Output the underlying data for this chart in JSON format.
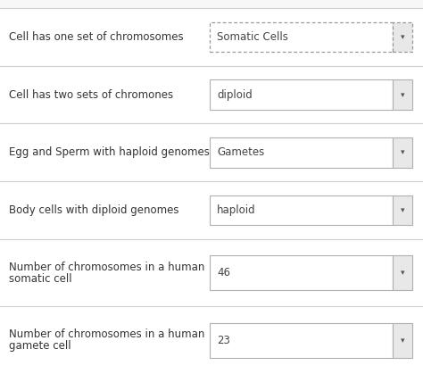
{
  "rows": [
    {
      "question": "Cell has one set of chromosomes",
      "answer": "Somatic Cells",
      "dotted_border": true,
      "multiline": false
    },
    {
      "question": "Cell has two sets of chromones",
      "answer": "diploid",
      "dotted_border": false,
      "multiline": false
    },
    {
      "question": "Egg and Sperm with haploid genomes",
      "answer": "Gametes",
      "dotted_border": false,
      "multiline": false
    },
    {
      "question": "Body cells with diploid genomes",
      "answer": "haploid",
      "dotted_border": false,
      "multiline": false
    },
    {
      "question": "Number of chromosomes in a human\nsomatic cell",
      "answer": "46",
      "dotted_border": false,
      "multiline": true
    },
    {
      "question": "Number of chromosomes in a human\ngamete cell",
      "answer": "23",
      "dotted_border": false,
      "multiline": true
    }
  ],
  "fig_bg": "#f7f7f7",
  "row_bg": "#ffffff",
  "separator_color": "#d0d0d0",
  "top_border_color": "#d0d0d0",
  "text_color": "#333333",
  "answer_color": "#444444",
  "dropdown_main_bg": "#ffffff",
  "dropdown_tab_bg": "#e8e8e8",
  "border_color_solid": "#b0b0b0",
  "border_color_dotted": "#999999",
  "arrow_color": "#555555",
  "question_fontsize": 8.5,
  "answer_fontsize": 8.5,
  "fig_width": 4.74,
  "fig_height": 4.19,
  "dpi": 100
}
